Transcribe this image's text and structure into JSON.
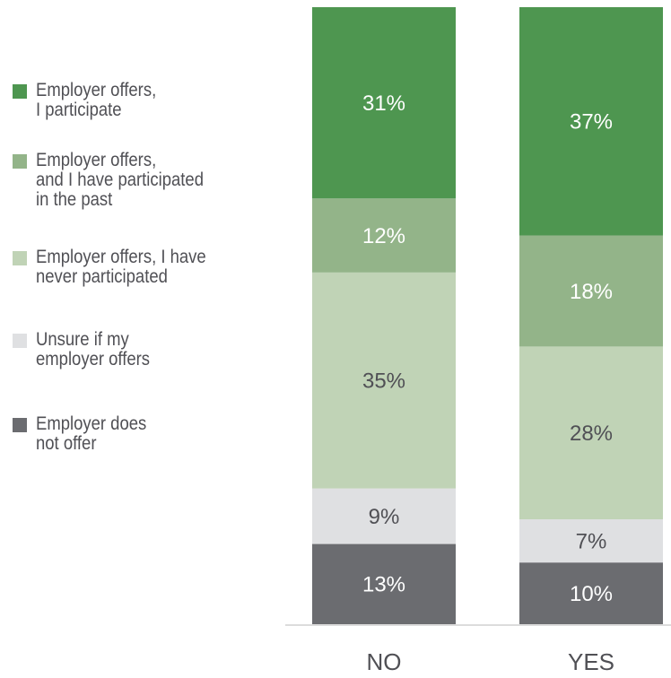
{
  "chart_data": {
    "type": "stacked_bar",
    "categories": [
      "NO",
      "YES"
    ],
    "ylim": [
      0,
      100
    ],
    "series": [
      {
        "name": "Employer offers,\nI participate",
        "color": "#4e9650",
        "label_color": "#ffffff",
        "values": [
          31,
          37
        ],
        "value_labels": [
          "31%",
          "37%"
        ]
      },
      {
        "name": "Employer offers,\nand I have participated\nin the past",
        "color": "#93b489",
        "label_color": "#ffffff",
        "values": [
          12,
          18
        ],
        "value_labels": [
          "12%",
          "18%"
        ]
      },
      {
        "name": "Employer offers, I have\nnever participated",
        "color": "#c0d3b6",
        "label_color": "#505055",
        "values": [
          35,
          28
        ],
        "value_labels": [
          "35%",
          "28%"
        ]
      },
      {
        "name": "Unsure if my\nemployer offers",
        "color": "#dfe0e2",
        "label_color": "#505055",
        "values": [
          9,
          7
        ],
        "value_labels": [
          "9%",
          "7%"
        ]
      },
      {
        "name": "Employer does\nnot offer",
        "color": "#6b6c70",
        "label_color": "#ffffff",
        "values": [
          13,
          10
        ],
        "value_labels": [
          "13%",
          "10%"
        ]
      }
    ]
  }
}
